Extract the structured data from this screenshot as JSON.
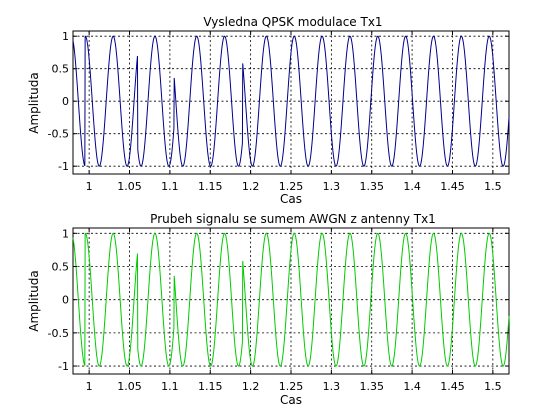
{
  "chart_data": [
    {
      "type": "line",
      "title": "Vysledna QPSK modulace Tx1",
      "xlabel": "Cas",
      "ylabel": "Amplituda",
      "xlim": [
        0.98,
        1.52
      ],
      "ylim": [
        -1.12,
        1.08
      ],
      "xticks": [
        1,
        1.05,
        1.1,
        1.15,
        1.2,
        1.25,
        1.3,
        1.35,
        1.4,
        1.45,
        1.5
      ],
      "xtick_labels": [
        "1",
        "1.05",
        "1.1",
        "1.15",
        "1.2",
        "1.25",
        "1.3",
        "1.35",
        "1.4",
        "1.45",
        "1.5"
      ],
      "yticks": [
        -1,
        -0.5,
        0,
        0.5,
        1
      ],
      "ytick_labels": [
        "-1",
        "-0.5",
        "0",
        "0.5",
        "1"
      ],
      "grid": true,
      "signal": {
        "kind": "sinusoid",
        "amplitude": 1,
        "period": 0.0345,
        "phase_reference_x": 1.0125,
        "phase_jumps_at": [
          0.995,
          1.06,
          1.105,
          1.19
        ]
      },
      "color": "#00008b"
    },
    {
      "type": "line",
      "title": "Prubeh signalu se sumem AWGN z antenny Tx1",
      "xlabel": "Cas",
      "ylabel": "Amplituda",
      "xlim": [
        0.98,
        1.52
      ],
      "ylim": [
        -1.12,
        1.08
      ],
      "xticks": [
        1,
        1.05,
        1.1,
        1.15,
        1.2,
        1.25,
        1.3,
        1.35,
        1.4,
        1.45,
        1.5
      ],
      "xtick_labels": [
        "1",
        "1.05",
        "1.1",
        "1.15",
        "1.2",
        "1.25",
        "1.3",
        "1.35",
        "1.4",
        "1.45",
        "1.5"
      ],
      "yticks": [
        -1,
        -0.5,
        0,
        0.5,
        1
      ],
      "ytick_labels": [
        "-1",
        "-0.5",
        "0",
        "0.5",
        "1"
      ],
      "grid": true,
      "signal": {
        "kind": "sinusoid",
        "amplitude": 1,
        "period": 0.0345,
        "phase_reference_x": 1.0125,
        "phase_jumps_at": [
          0.995,
          1.06,
          1.105,
          1.19
        ]
      },
      "color": "#00cc00"
    }
  ]
}
